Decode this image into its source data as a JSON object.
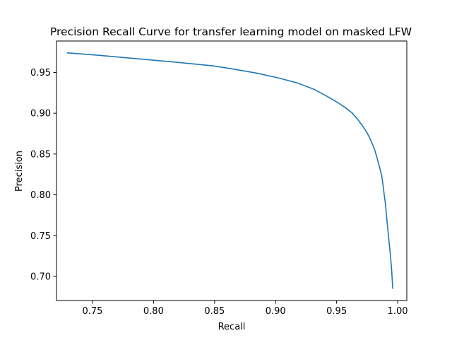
{
  "chart_data": {
    "type": "line",
    "title": "Precision Recall Curve for transfer learning model on masked LFW",
    "xlabel": "Recall",
    "ylabel": "Precision",
    "xlim": [
      0.7205,
      1.0075
    ],
    "ylim": [
      0.6705,
      0.9885
    ],
    "xticks": [
      "0.75",
      "0.80",
      "0.85",
      "0.90",
      "0.95",
      "1.00"
    ],
    "yticks": [
      "0.70",
      "0.75",
      "0.80",
      "0.85",
      "0.90",
      "0.95"
    ],
    "grid": false,
    "line_color": "#1f77b4",
    "series": [
      {
        "x": [
          0.729,
          0.755,
          0.785,
          0.815,
          0.849,
          0.866,
          0.885,
          0.903,
          0.918,
          0.932,
          0.943,
          0.951,
          0.957,
          0.963,
          0.967,
          0.971,
          0.975,
          0.978,
          0.981,
          0.983,
          0.985,
          0.987,
          0.988,
          0.989,
          0.99,
          0.991,
          0.992,
          0.993,
          0.994,
          0.995,
          0.996
        ],
        "y": [
          0.974,
          0.971,
          0.967,
          0.963,
          0.958,
          0.954,
          0.949,
          0.943,
          0.937,
          0.929,
          0.92,
          0.913,
          0.907,
          0.9,
          0.893,
          0.885,
          0.876,
          0.867,
          0.856,
          0.846,
          0.835,
          0.823,
          0.812,
          0.8,
          0.789,
          0.772,
          0.757,
          0.742,
          0.727,
          0.71,
          0.685
        ]
      }
    ]
  }
}
